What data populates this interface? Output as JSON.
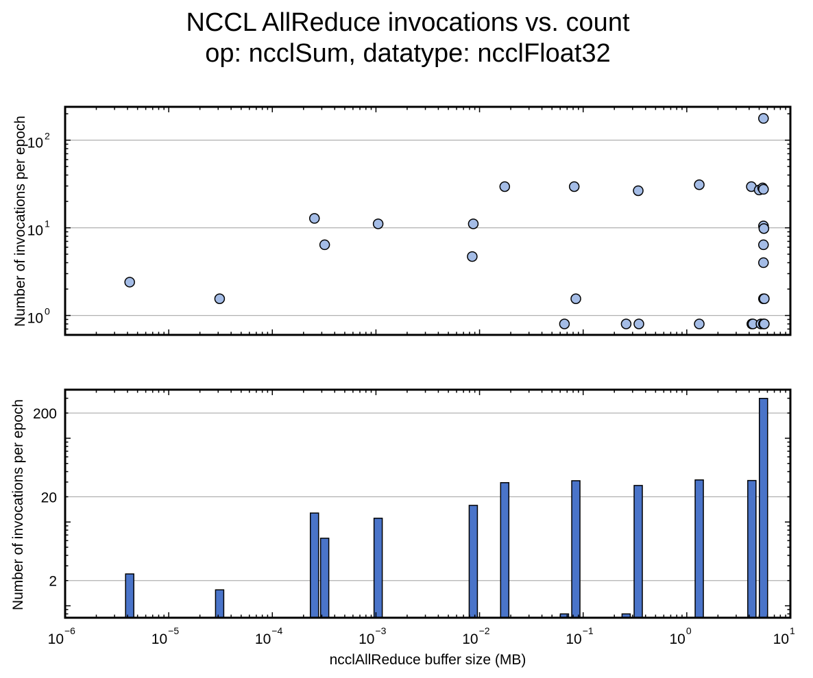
{
  "figure": {
    "title_line1": "NCCL AllReduce invocations vs. count",
    "title_line2": "op: ncclSum, datatype: ncclFloat32"
  },
  "colors": {
    "scatter_fill": "#a4bce6",
    "bar_fill": "#4a74c9",
    "edge": "#000000",
    "grid": "#b0b0b0"
  },
  "chart_data": [
    {
      "type": "scatter",
      "xlabel": "",
      "ylabel": "Number of invocations per epoch",
      "xscale": "log",
      "yscale": "log",
      "xlim": [
        1e-06,
        10
      ],
      "ylim": [
        0.6,
        240
      ],
      "grid": "y-major",
      "y_ticks": [
        {
          "value": 1,
          "base": "10",
          "exp": "0"
        },
        {
          "value": 10,
          "base": "10",
          "exp": "1"
        },
        {
          "value": 100,
          "base": "10",
          "exp": "2"
        }
      ],
      "points": [
        {
          "x": 4.2e-06,
          "y": 2.4
        },
        {
          "x": 3.1e-05,
          "y": 1.55
        },
        {
          "x": 0.000255,
          "y": 12.8
        },
        {
          "x": 0.00032,
          "y": 6.4
        },
        {
          "x": 0.00105,
          "y": 11.1
        },
        {
          "x": 0.0085,
          "y": 4.7
        },
        {
          "x": 0.0087,
          "y": 11.1
        },
        {
          "x": 0.0175,
          "y": 29.5
        },
        {
          "x": 0.066,
          "y": 0.8
        },
        {
          "x": 0.082,
          "y": 29.5
        },
        {
          "x": 0.085,
          "y": 1.55
        },
        {
          "x": 0.26,
          "y": 0.8
        },
        {
          "x": 0.34,
          "y": 26.5
        },
        {
          "x": 0.345,
          "y": 0.8
        },
        {
          "x": 1.32,
          "y": 31
        },
        {
          "x": 1.32,
          "y": 0.8
        },
        {
          "x": 4.2,
          "y": 29.5
        },
        {
          "x": 4.25,
          "y": 0.8
        },
        {
          "x": 4.35,
          "y": 0.8
        },
        {
          "x": 5.0,
          "y": 27
        },
        {
          "x": 5.2,
          "y": 0.8
        },
        {
          "x": 5.4,
          "y": 28.5
        },
        {
          "x": 5.5,
          "y": 27.5
        },
        {
          "x": 5.5,
          "y": 10.5
        },
        {
          "x": 5.55,
          "y": 9.8
        },
        {
          "x": 5.5,
          "y": 6.4
        },
        {
          "x": 5.5,
          "y": 4.0
        },
        {
          "x": 5.5,
          "y": 1.55
        },
        {
          "x": 5.6,
          "y": 1.55
        },
        {
          "x": 5.5,
          "y": 0.8
        },
        {
          "x": 5.6,
          "y": 0.8
        },
        {
          "x": 5.5,
          "y": 177
        }
      ]
    },
    {
      "type": "bar",
      "xlabel": "ncclAllReduce buffer size (MB)",
      "ylabel": "Number of invocations per epoch",
      "xscale": "log",
      "yscale": "log",
      "xlim": [
        1e-06,
        10
      ],
      "ylim": [
        0.72,
        380
      ],
      "grid": "y-major",
      "y_ticks": [
        {
          "value": 2,
          "label": "2"
        },
        {
          "value": 20,
          "label": "20"
        },
        {
          "value": 200,
          "label": "200"
        }
      ],
      "x_ticks": [
        {
          "value": 1e-06,
          "base": "10",
          "exp": "−6"
        },
        {
          "value": 1e-05,
          "base": "10",
          "exp": "−5"
        },
        {
          "value": 0.0001,
          "base": "10",
          "exp": "−4"
        },
        {
          "value": 0.001,
          "base": "10",
          "exp": "−3"
        },
        {
          "value": 0.01,
          "base": "10",
          "exp": "−2"
        },
        {
          "value": 0.1,
          "base": "10",
          "exp": "−1"
        },
        {
          "value": 1,
          "base": "10",
          "exp": "0"
        },
        {
          "value": 10,
          "base": "10",
          "exp": "1"
        }
      ],
      "bars": [
        {
          "x": 4.2e-06,
          "y": 2.4
        },
        {
          "x": 3.1e-05,
          "y": 1.55
        },
        {
          "x": 0.000255,
          "y": 12.8
        },
        {
          "x": 0.00032,
          "y": 6.4
        },
        {
          "x": 0.00105,
          "y": 11.1
        },
        {
          "x": 0.0087,
          "y": 15.8
        },
        {
          "x": 0.0175,
          "y": 29.5
        },
        {
          "x": 0.066,
          "y": 0.8
        },
        {
          "x": 0.085,
          "y": 31.1
        },
        {
          "x": 0.26,
          "y": 0.8
        },
        {
          "x": 0.34,
          "y": 27.3
        },
        {
          "x": 1.32,
          "y": 31.8
        },
        {
          "x": 4.25,
          "y": 31.3
        },
        {
          "x": 5.5,
          "y": 299
        }
      ]
    }
  ]
}
